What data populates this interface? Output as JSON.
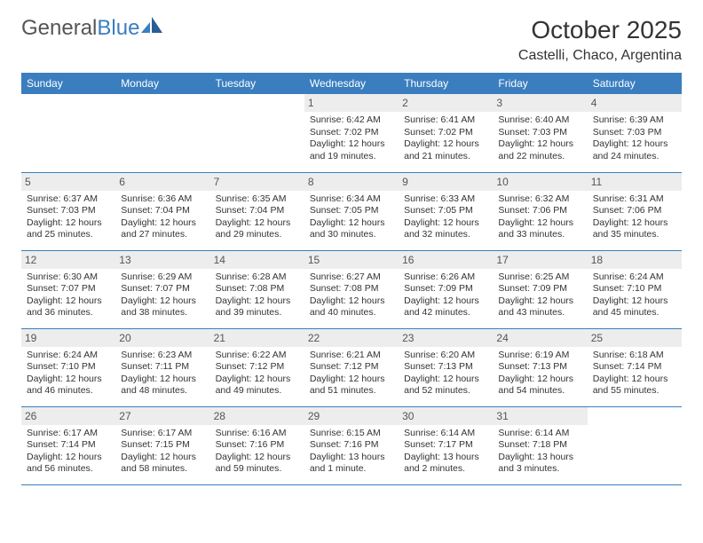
{
  "brand": {
    "part1": "General",
    "part2": "Blue"
  },
  "title": "October 2025",
  "location": "Castelli, Chaco, Argentina",
  "colors": {
    "header_bg": "#3a7ebf",
    "header_text": "#ffffff",
    "daynum_bg": "#ededed",
    "border": "#3a7ebf",
    "text": "#333333",
    "background": "#ffffff"
  },
  "weekdays": [
    "Sunday",
    "Monday",
    "Tuesday",
    "Wednesday",
    "Thursday",
    "Friday",
    "Saturday"
  ],
  "weeks": [
    [
      null,
      null,
      null,
      {
        "day": "1",
        "sunrise": "Sunrise: 6:42 AM",
        "sunset": "Sunset: 7:02 PM",
        "daylight": "Daylight: 12 hours and 19 minutes."
      },
      {
        "day": "2",
        "sunrise": "Sunrise: 6:41 AM",
        "sunset": "Sunset: 7:02 PM",
        "daylight": "Daylight: 12 hours and 21 minutes."
      },
      {
        "day": "3",
        "sunrise": "Sunrise: 6:40 AM",
        "sunset": "Sunset: 7:03 PM",
        "daylight": "Daylight: 12 hours and 22 minutes."
      },
      {
        "day": "4",
        "sunrise": "Sunrise: 6:39 AM",
        "sunset": "Sunset: 7:03 PM",
        "daylight": "Daylight: 12 hours and 24 minutes."
      }
    ],
    [
      {
        "day": "5",
        "sunrise": "Sunrise: 6:37 AM",
        "sunset": "Sunset: 7:03 PM",
        "daylight": "Daylight: 12 hours and 25 minutes."
      },
      {
        "day": "6",
        "sunrise": "Sunrise: 6:36 AM",
        "sunset": "Sunset: 7:04 PM",
        "daylight": "Daylight: 12 hours and 27 minutes."
      },
      {
        "day": "7",
        "sunrise": "Sunrise: 6:35 AM",
        "sunset": "Sunset: 7:04 PM",
        "daylight": "Daylight: 12 hours and 29 minutes."
      },
      {
        "day": "8",
        "sunrise": "Sunrise: 6:34 AM",
        "sunset": "Sunset: 7:05 PM",
        "daylight": "Daylight: 12 hours and 30 minutes."
      },
      {
        "day": "9",
        "sunrise": "Sunrise: 6:33 AM",
        "sunset": "Sunset: 7:05 PM",
        "daylight": "Daylight: 12 hours and 32 minutes."
      },
      {
        "day": "10",
        "sunrise": "Sunrise: 6:32 AM",
        "sunset": "Sunset: 7:06 PM",
        "daylight": "Daylight: 12 hours and 33 minutes."
      },
      {
        "day": "11",
        "sunrise": "Sunrise: 6:31 AM",
        "sunset": "Sunset: 7:06 PM",
        "daylight": "Daylight: 12 hours and 35 minutes."
      }
    ],
    [
      {
        "day": "12",
        "sunrise": "Sunrise: 6:30 AM",
        "sunset": "Sunset: 7:07 PM",
        "daylight": "Daylight: 12 hours and 36 minutes."
      },
      {
        "day": "13",
        "sunrise": "Sunrise: 6:29 AM",
        "sunset": "Sunset: 7:07 PM",
        "daylight": "Daylight: 12 hours and 38 minutes."
      },
      {
        "day": "14",
        "sunrise": "Sunrise: 6:28 AM",
        "sunset": "Sunset: 7:08 PM",
        "daylight": "Daylight: 12 hours and 39 minutes."
      },
      {
        "day": "15",
        "sunrise": "Sunrise: 6:27 AM",
        "sunset": "Sunset: 7:08 PM",
        "daylight": "Daylight: 12 hours and 40 minutes."
      },
      {
        "day": "16",
        "sunrise": "Sunrise: 6:26 AM",
        "sunset": "Sunset: 7:09 PM",
        "daylight": "Daylight: 12 hours and 42 minutes."
      },
      {
        "day": "17",
        "sunrise": "Sunrise: 6:25 AM",
        "sunset": "Sunset: 7:09 PM",
        "daylight": "Daylight: 12 hours and 43 minutes."
      },
      {
        "day": "18",
        "sunrise": "Sunrise: 6:24 AM",
        "sunset": "Sunset: 7:10 PM",
        "daylight": "Daylight: 12 hours and 45 minutes."
      }
    ],
    [
      {
        "day": "19",
        "sunrise": "Sunrise: 6:24 AM",
        "sunset": "Sunset: 7:10 PM",
        "daylight": "Daylight: 12 hours and 46 minutes."
      },
      {
        "day": "20",
        "sunrise": "Sunrise: 6:23 AM",
        "sunset": "Sunset: 7:11 PM",
        "daylight": "Daylight: 12 hours and 48 minutes."
      },
      {
        "day": "21",
        "sunrise": "Sunrise: 6:22 AM",
        "sunset": "Sunset: 7:12 PM",
        "daylight": "Daylight: 12 hours and 49 minutes."
      },
      {
        "day": "22",
        "sunrise": "Sunrise: 6:21 AM",
        "sunset": "Sunset: 7:12 PM",
        "daylight": "Daylight: 12 hours and 51 minutes."
      },
      {
        "day": "23",
        "sunrise": "Sunrise: 6:20 AM",
        "sunset": "Sunset: 7:13 PM",
        "daylight": "Daylight: 12 hours and 52 minutes."
      },
      {
        "day": "24",
        "sunrise": "Sunrise: 6:19 AM",
        "sunset": "Sunset: 7:13 PM",
        "daylight": "Daylight: 12 hours and 54 minutes."
      },
      {
        "day": "25",
        "sunrise": "Sunrise: 6:18 AM",
        "sunset": "Sunset: 7:14 PM",
        "daylight": "Daylight: 12 hours and 55 minutes."
      }
    ],
    [
      {
        "day": "26",
        "sunrise": "Sunrise: 6:17 AM",
        "sunset": "Sunset: 7:14 PM",
        "daylight": "Daylight: 12 hours and 56 minutes."
      },
      {
        "day": "27",
        "sunrise": "Sunrise: 6:17 AM",
        "sunset": "Sunset: 7:15 PM",
        "daylight": "Daylight: 12 hours and 58 minutes."
      },
      {
        "day": "28",
        "sunrise": "Sunrise: 6:16 AM",
        "sunset": "Sunset: 7:16 PM",
        "daylight": "Daylight: 12 hours and 59 minutes."
      },
      {
        "day": "29",
        "sunrise": "Sunrise: 6:15 AM",
        "sunset": "Sunset: 7:16 PM",
        "daylight": "Daylight: 13 hours and 1 minute."
      },
      {
        "day": "30",
        "sunrise": "Sunrise: 6:14 AM",
        "sunset": "Sunset: 7:17 PM",
        "daylight": "Daylight: 13 hours and 2 minutes."
      },
      {
        "day": "31",
        "sunrise": "Sunrise: 6:14 AM",
        "sunset": "Sunset: 7:18 PM",
        "daylight": "Daylight: 13 hours and 3 minutes."
      },
      null
    ]
  ]
}
